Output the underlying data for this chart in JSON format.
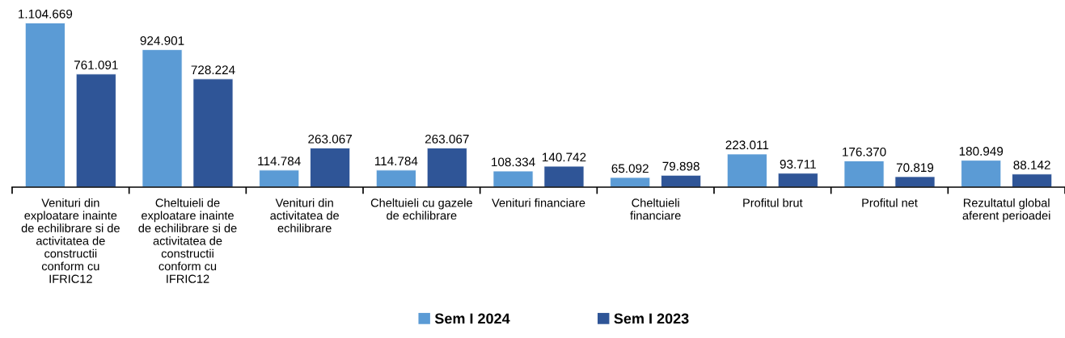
{
  "chart_data": {
    "type": "bar",
    "categories": [
      "Venituri din\nexploatare inainte\nde echilibrare si de\nactivitatea de\nconstructii\nconform cu\nIFRIC12",
      "Cheltuieli de\nexploatare inainte\nde echilibrare si de\nactivitatea de\nconstructii\nconform cu\nIFRIC12",
      "Venituri din\nactivitatea de\nechilibrare",
      "Cheltuieli cu gazele\nde echilibrare",
      "Venituri financiare",
      "Cheltuieli\nfinanciare",
      "Profitul brut",
      "Profitul net",
      "Rezultatul global\naferent perioadei"
    ],
    "series": [
      {
        "name": "Sem I 2024",
        "color": "#5b9bd5",
        "values": [
          1104669,
          924901,
          114784,
          114784,
          108334,
          65092,
          223011,
          176370,
          180949
        ],
        "value_labels": [
          "1.104.669",
          "924.901",
          "114.784",
          "114.784",
          "108.334",
          "65.092",
          "223.011",
          "176.370",
          "180.949"
        ]
      },
      {
        "name": "Sem I 2023",
        "color": "#2f5597",
        "values": [
          761091,
          728224,
          263067,
          263067,
          140742,
          79898,
          93711,
          70819,
          88142
        ],
        "value_labels": [
          "761.091",
          "728.224",
          "263.067",
          "263.067",
          "140.742",
          "79.898",
          "93.711",
          "70.819",
          "88.142"
        ]
      }
    ],
    "legend": "bottom"
  }
}
